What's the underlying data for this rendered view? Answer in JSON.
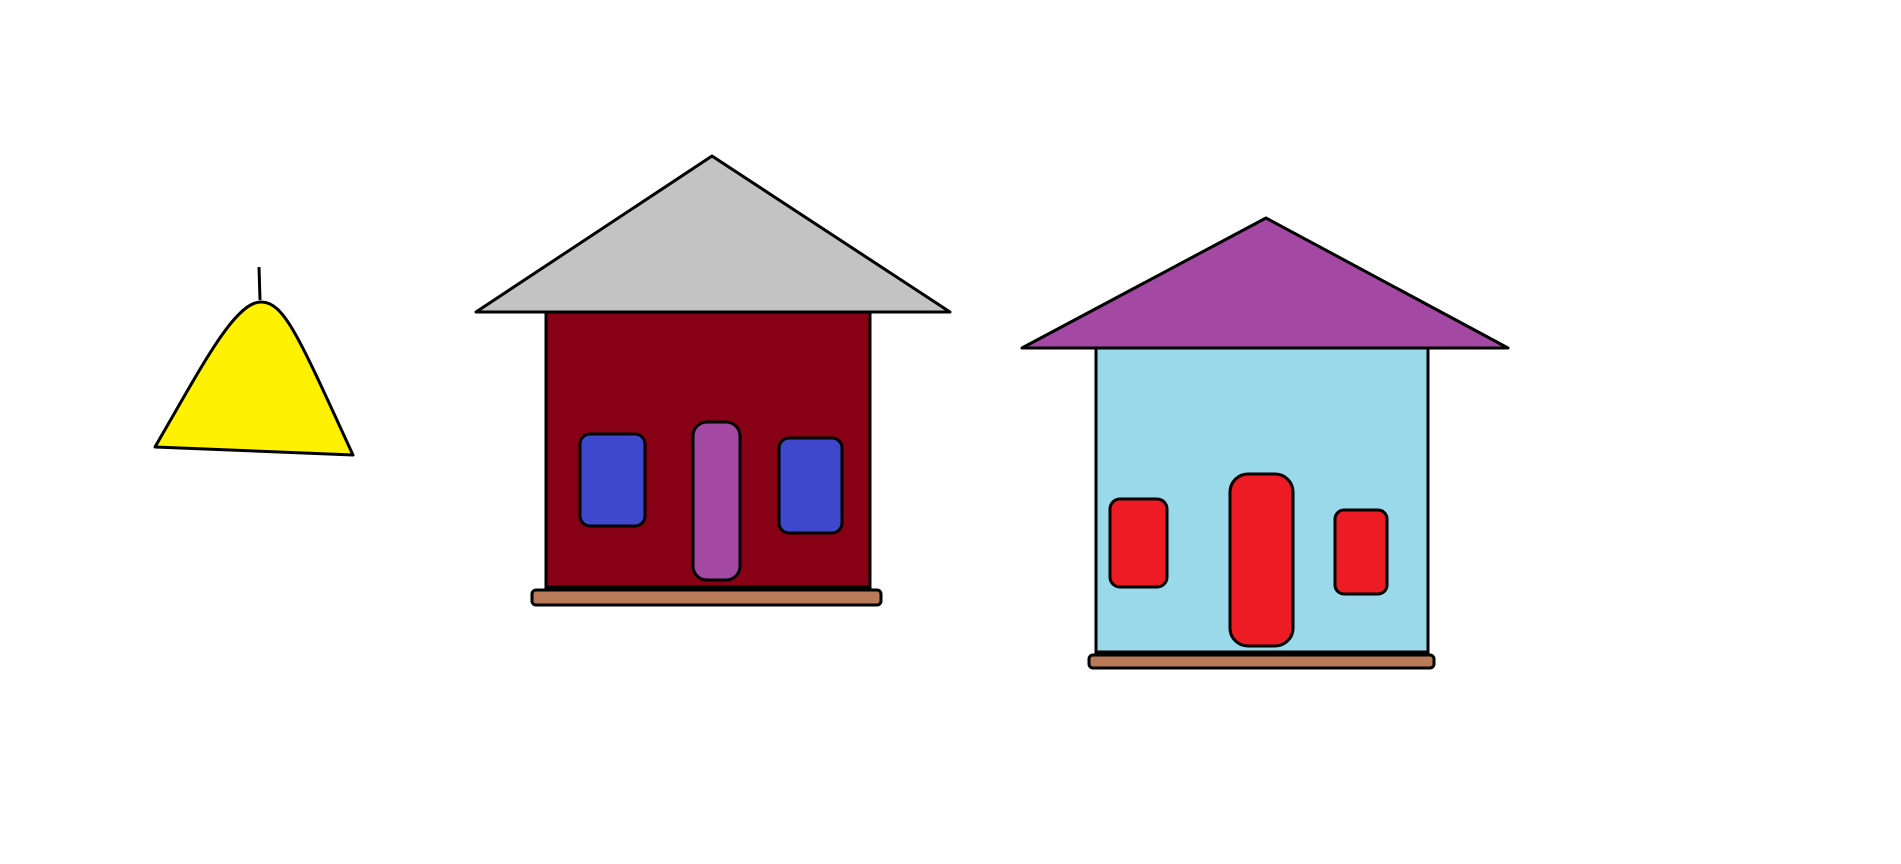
{
  "scene": {
    "background": "#ffffff",
    "outline": "#000000",
    "bell": {
      "icon": "bell-icon",
      "body_color": "#fff200"
    },
    "house_left": {
      "icon": "house-icon",
      "roof_color": "#c3c3c3",
      "wall_color": "#880015",
      "window_color": "#3f48cc",
      "door_color": "#a349a4",
      "base_color": "#b97a57"
    },
    "house_right": {
      "icon": "house-icon",
      "roof_color": "#a349a4",
      "wall_color": "#99d9ea",
      "window_color": "#ed1c24",
      "door_color": "#ed1c24",
      "base_color": "#b97a57"
    }
  }
}
